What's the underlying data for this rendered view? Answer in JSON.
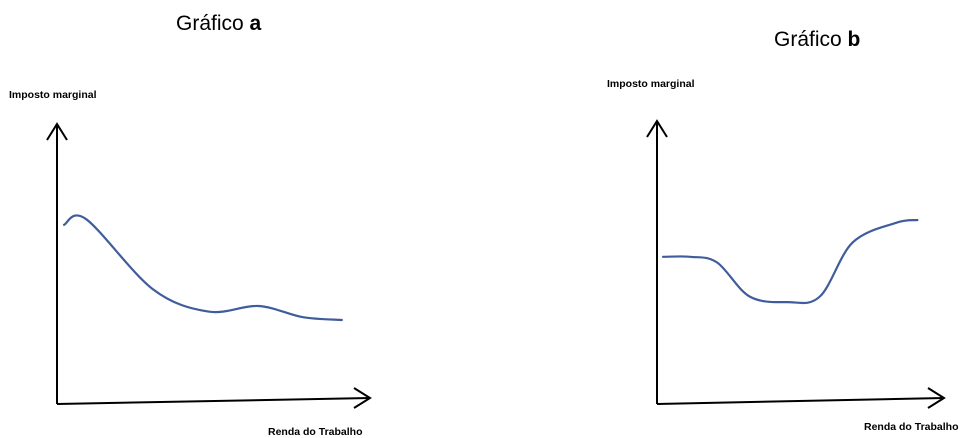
{
  "chart_data": [
    {
      "type": "line",
      "title_prefix": "Gráfico ",
      "title_letter": "a",
      "ylabel": "Imposto marginal",
      "xlabel": "Renda do Trabalho",
      "x": [
        0,
        0.4,
        1.6,
        2.6,
        3.5,
        4.3,
        5.0
      ],
      "y": [
        0.64,
        0.66,
        0.41,
        0.33,
        0.35,
        0.31,
        0.3
      ],
      "xlim": [
        0,
        5.4
      ],
      "ylim": [
        0,
        1
      ],
      "line_color": "#3f5c9c",
      "axis_color": "#000000",
      "grid": false
    },
    {
      "type": "line",
      "title_prefix": "Gráfico ",
      "title_letter": "b",
      "ylabel": "Imposto marginal",
      "xlabel": "Renda do Trabalho",
      "x": [
        0,
        0.5,
        1.0,
        1.6,
        2.3,
        2.9,
        3.5,
        4.3,
        4.7
      ],
      "y": [
        0.52,
        0.52,
        0.5,
        0.38,
        0.36,
        0.38,
        0.57,
        0.64,
        0.65
      ],
      "xlim": [
        0,
        5.1
      ],
      "ylim": [
        0,
        1
      ],
      "line_color": "#3f5c9c",
      "axis_color": "#000000",
      "grid": false
    }
  ]
}
